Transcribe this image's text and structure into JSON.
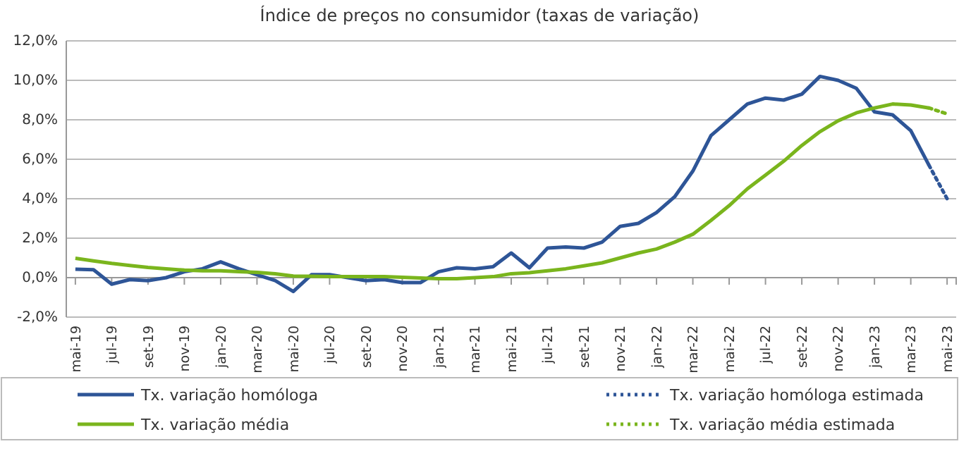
{
  "chart_data": {
    "type": "line",
    "title": "Índice de preços no consumidor  (taxas  de variação)",
    "categories": [
      "mai-19",
      null,
      "jul-19",
      null,
      "set-19",
      null,
      "nov-19",
      null,
      "jan-20",
      null,
      "mar-20",
      null,
      "mai-20",
      null,
      "jul-20",
      null,
      "set-20",
      null,
      "nov-20",
      null,
      "jan-21",
      null,
      "mar-21",
      null,
      "mai-21",
      null,
      "jul-21",
      null,
      "set-21",
      null,
      "nov-21",
      null,
      "jan-22",
      null,
      "mar-22",
      null,
      "mai-22",
      null,
      "jul-22",
      null,
      "set-22",
      null,
      "nov-22",
      null,
      "jan-23",
      null,
      "mar-23",
      null,
      "mai-23"
    ],
    "series": [
      {
        "name": "Tx. variação homóloga",
        "color": "#2e5597",
        "line_style": "solid",
        "values": [
          0.43,
          0.4,
          -0.33,
          -0.1,
          -0.15,
          0,
          0.3,
          0.45,
          0.8,
          0.45,
          0.15,
          -0.15,
          -0.7,
          0.15,
          0.15,
          0,
          -0.15,
          -0.1,
          -0.25,
          -0.25,
          0.3,
          0.5,
          0.45,
          0.55,
          1.25,
          0.5,
          1.5,
          1.55,
          1.5,
          1.8,
          2.6,
          2.75,
          3.3,
          4.1,
          5.4,
          7.2,
          8.0,
          8.8,
          9.1,
          9.0,
          9.3,
          10.2,
          10.0,
          9.6,
          8.4,
          8.25,
          7.45,
          5.7,
          null
        ]
      },
      {
        "name": "Tx. variação homóloga estimada",
        "color": "#2e5597",
        "line_style": "dotted",
        "values": [
          null,
          null,
          null,
          null,
          null,
          null,
          null,
          null,
          null,
          null,
          null,
          null,
          null,
          null,
          null,
          null,
          null,
          null,
          null,
          null,
          null,
          null,
          null,
          null,
          null,
          null,
          null,
          null,
          null,
          null,
          null,
          null,
          null,
          null,
          null,
          null,
          null,
          null,
          null,
          null,
          null,
          null,
          null,
          null,
          null,
          null,
          null,
          5.7,
          4.0
        ]
      },
      {
        "name": "Tx. variação média",
        "color": "#7ab51d",
        "line_style": "solid",
        "values": [
          0.98,
          0.85,
          0.72,
          0.62,
          0.52,
          0.45,
          0.38,
          0.35,
          0.35,
          0.3,
          0.27,
          0.2,
          0.08,
          0.07,
          0.05,
          0.05,
          0.05,
          0.05,
          0.02,
          -0.02,
          -0.05,
          -0.05,
          0.0,
          0.05,
          0.2,
          0.25,
          0.35,
          0.45,
          0.6,
          0.75,
          1.0,
          1.25,
          1.45,
          1.8,
          2.2,
          2.9,
          3.65,
          4.5,
          5.2,
          5.9,
          6.7,
          7.4,
          7.95,
          8.35,
          8.6,
          8.8,
          8.75,
          8.6,
          null
        ]
      },
      {
        "name": "Tx. variação média  estimada",
        "color": "#7ab51d",
        "line_style": "dotted",
        "values": [
          null,
          null,
          null,
          null,
          null,
          null,
          null,
          null,
          null,
          null,
          null,
          null,
          null,
          null,
          null,
          null,
          null,
          null,
          null,
          null,
          null,
          null,
          null,
          null,
          null,
          null,
          null,
          null,
          null,
          null,
          null,
          null,
          null,
          null,
          null,
          null,
          null,
          null,
          null,
          null,
          null,
          null,
          null,
          null,
          null,
          null,
          null,
          8.6,
          8.3
        ]
      }
    ],
    "ylim": [
      -2,
      12
    ],
    "yticks": [
      {
        "value": -2,
        "label": "-2,0%"
      },
      {
        "value": 0,
        "label": "0,0%"
      },
      {
        "value": 2,
        "label": "2,0%"
      },
      {
        "value": 4,
        "label": "4,0%"
      },
      {
        "value": 6,
        "label": "6,0%"
      },
      {
        "value": 8,
        "label": "8,0%"
      },
      {
        "value": 10,
        "label": "10,0%"
      },
      {
        "value": 12,
        "label": "12,0%"
      }
    ],
    "grid": "y",
    "legend": "bottom",
    "marker": "none"
  }
}
